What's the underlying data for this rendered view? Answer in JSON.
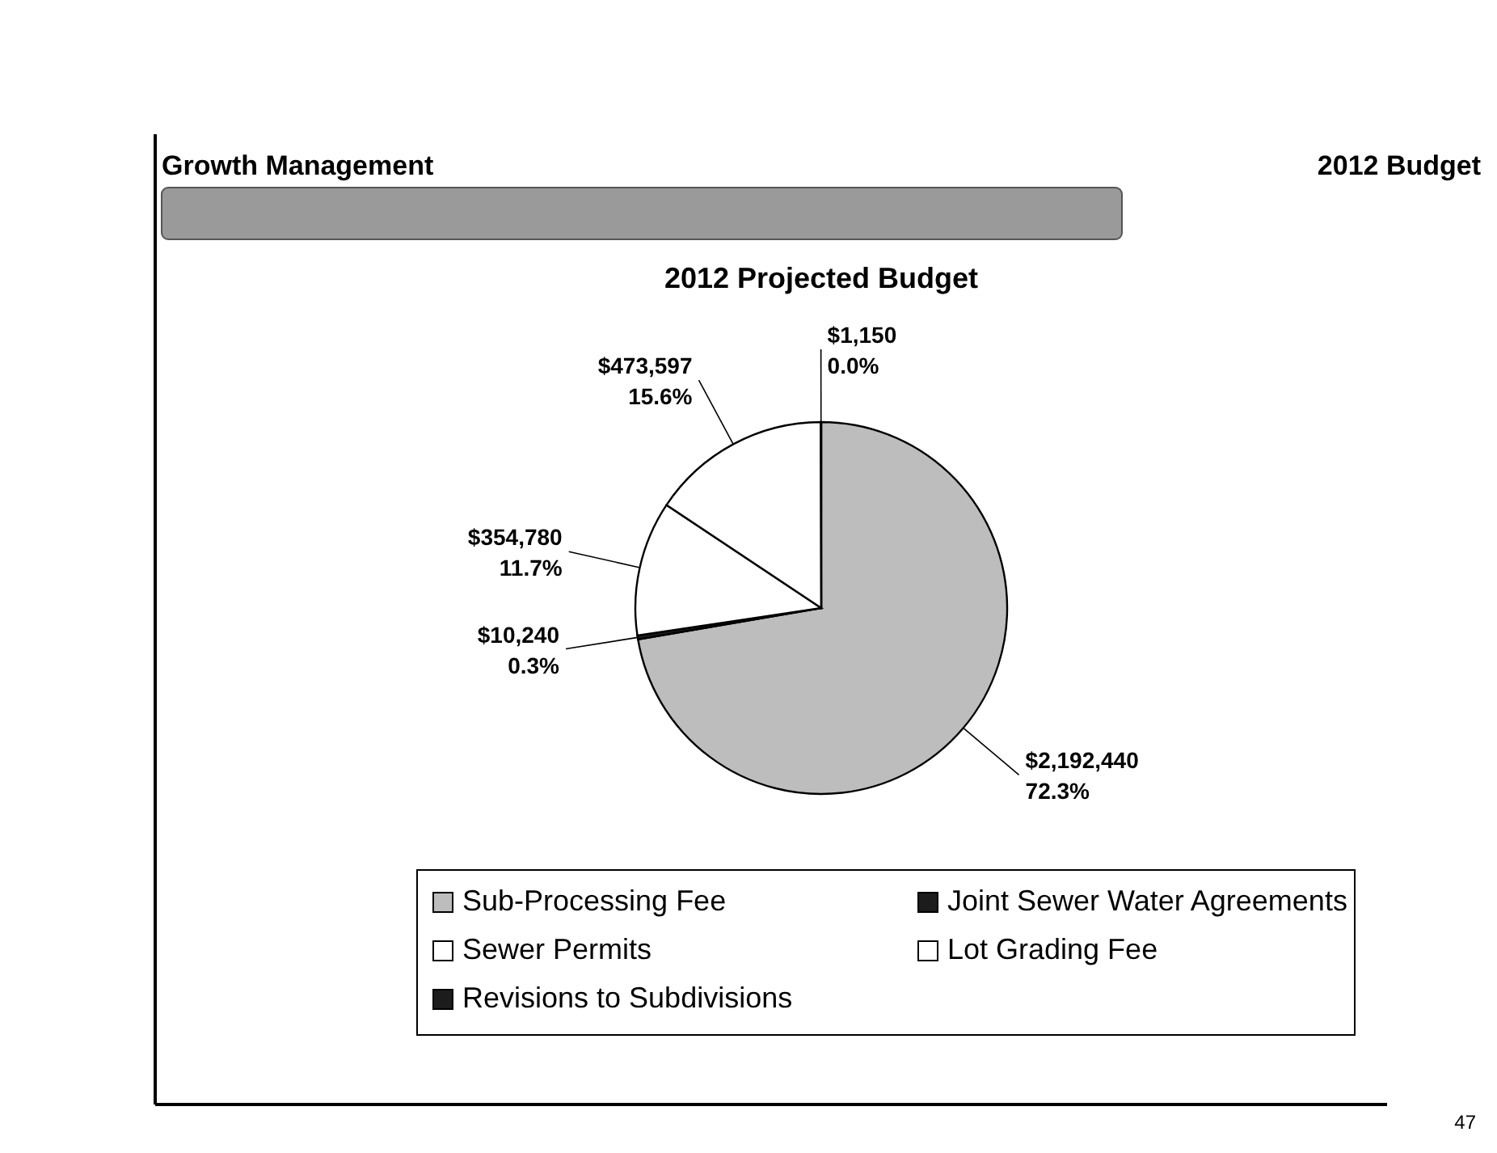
{
  "chart_data": {
    "type": "pie",
    "title": "2012 Projected Budget",
    "annotations": [
      "Growth Management",
      "2012 Budget",
      "47"
    ],
    "categories": [
      "Sub-Processing Fee",
      "Joint Sewer Water Agreements",
      "Sewer Permits",
      "Lot Grading Fee",
      "Revisions to Subdivisions"
    ],
    "values": [
      2192440,
      10240,
      354780,
      473597,
      1150
    ],
    "colors": [
      "#bdbdbd",
      "#1c1c1c",
      "#ffffff",
      "#ffffff",
      "#1c1c1c"
    ],
    "value_labels": [
      "$2,192,440\n72.3%",
      "$10,240\n0.3%",
      "$354,780\n11.7%",
      "$473,597\n15.6%",
      "$1,150\n0.0%"
    ],
    "legend": "bottom"
  }
}
